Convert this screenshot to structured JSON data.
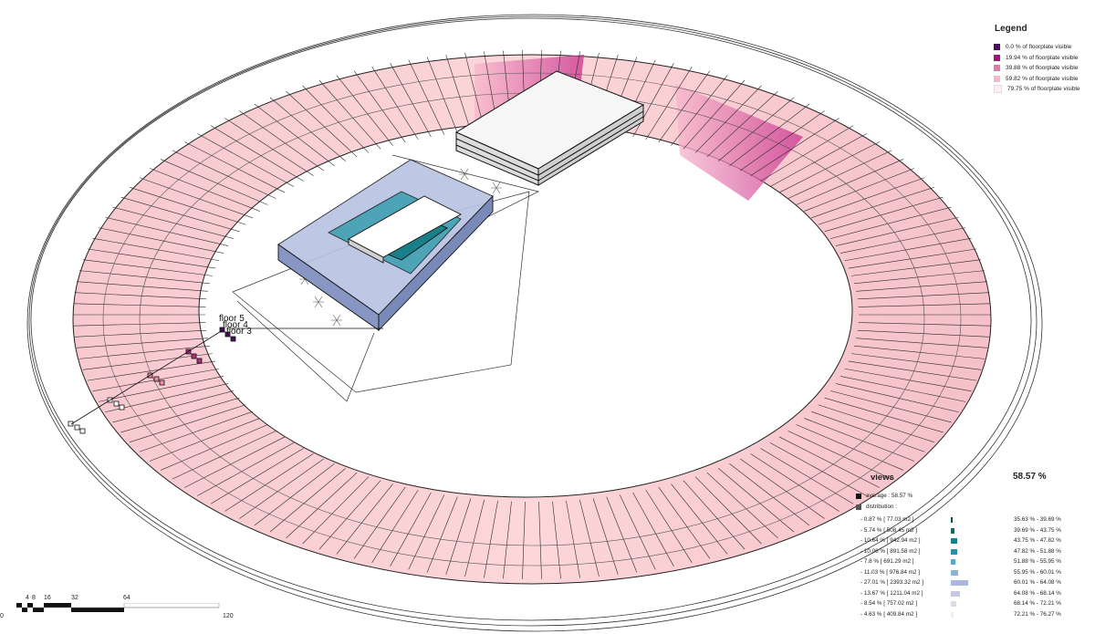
{
  "floor_labels": [
    "floor 5",
    "floor 4",
    "floor 3"
  ],
  "legend": {
    "title": "Legend",
    "items": [
      {
        "label": "0.0 % of floorplate visible",
        "color": "#4a0d5c"
      },
      {
        "label": "19.94 % of floorplate visible",
        "color": "#9c1a7e"
      },
      {
        "label": "39.88 % of floorplate visible",
        "color": "#e07aa8"
      },
      {
        "label": "59.82 % of floorplate visible",
        "color": "#f4b9c4"
      },
      {
        "label": "79.75 % of floorplate visible",
        "color": "#fdf1f1"
      }
    ]
  },
  "views": {
    "title": "views",
    "value": "58.57 %",
    "average_label": "average : 58.57 %",
    "distribution_label": "distribution :",
    "rows": [
      {
        "pct": "-  0.87 % [ 77.03 m2 ]",
        "range": "35.63 % -  39.69 %",
        "share": 0.87,
        "color": "#0b4f4f"
      },
      {
        "pct": "-  5.74 % [ 508.45 m2 ]",
        "range": "39.69 % -  43.75 %",
        "share": 5.74,
        "color": "#0f6b6a"
      },
      {
        "pct": "-  10.64 % [ 942.94 m2 ]",
        "range": "43.75 % -  47.82 %",
        "share": 10.64,
        "color": "#14808a"
      },
      {
        "pct": "-  10.06 % [ 891.58 m2 ]",
        "range": "47.82 % -  51.88 %",
        "share": 10.06,
        "color": "#2b8fa8"
      },
      {
        "pct": "-  7.8 % [ 691.29 m2 ]",
        "range": "51.88 % -  55.95 %",
        "share": 7.8,
        "color": "#5aa7c4"
      },
      {
        "pct": "-  11.03 % [ 976.84 m2 ]",
        "range": "55.95 % -  60.01 %",
        "share": 11.03,
        "color": "#8ab5d3"
      },
      {
        "pct": "-  27.01 % [ 2393.32 m2 ]",
        "range": "60.01 % -  64.08 %",
        "share": 27.01,
        "color": "#aab8dc"
      },
      {
        "pct": "-  13.67 % [ 1211.04 m2 ]",
        "range": "64.08 % -  68.14 %",
        "share": 13.67,
        "color": "#c6c8e2"
      },
      {
        "pct": "-  8.54 % [ 757.02 m2 ]",
        "range": "68.14 % -  72.21 %",
        "share": 8.54,
        "color": "#dcdbec"
      },
      {
        "pct": "-  4.63 % [ 409.84 m2 ]",
        "range": "72.21 % -  76.27 %",
        "share": 4.63,
        "color": "#ececf4"
      }
    ]
  },
  "scale_bar": {
    "ticks": [
      "0",
      "4",
      "8",
      "16",
      "32",
      "64",
      "120"
    ]
  }
}
